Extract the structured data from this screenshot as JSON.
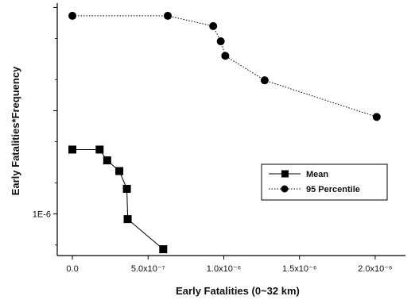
{
  "chart_data": {
    "type": "line",
    "title": "",
    "xlabel": "Early Fatalities (0~32 km)",
    "ylabel": "Early Fatalities*Frequency",
    "xlim": [
      -1e-07,
      2.2e-06
    ],
    "x_ticks": [
      {
        "value": 0,
        "label": "0.0"
      },
      {
        "value": 5e-07,
        "label": "5.0x10⁻⁷"
      },
      {
        "value": 1e-06,
        "label": "1.0x10⁻⁶"
      },
      {
        "value": 1.5e-06,
        "label": "1.5x10⁻⁶"
      },
      {
        "value": 2e-06,
        "label": "2.0x10⁻⁶"
      }
    ],
    "y_scale": "log",
    "ylim": [
      3.95e-07,
      0.00011
    ],
    "y_ticks": [
      {
        "value": 1e-06,
        "label": "1E-6"
      }
    ],
    "legend_position": "center-right",
    "series": [
      {
        "name": "Mean",
        "marker": "square",
        "line_style": "solid",
        "points": [
          {
            "x": 0,
            "y": 4.2e-06
          },
          {
            "x": 1.8e-07,
            "y": 4.2e-06
          },
          {
            "x": 2.3e-07,
            "y": 3.3e-06
          },
          {
            "x": 3.1e-07,
            "y": 2.6e-06
          },
          {
            "x": 3.6e-07,
            "y": 1.75e-06
          },
          {
            "x": 3.65e-07,
            "y": 8.9e-07
          },
          {
            "x": 6e-07,
            "y": 4.55e-07
          }
        ]
      },
      {
        "name": "95 Percentile",
        "marker": "circle",
        "line_style": "dotted",
        "points": [
          {
            "x": 0,
            "y": 8.3e-05
          },
          {
            "x": 6.3e-07,
            "y": 8.3e-05
          },
          {
            "x": 9.3e-07,
            "y": 6.6e-05
          },
          {
            "x": 9.8e-07,
            "y": 4.7e-05
          },
          {
            "x": 1.01e-06,
            "y": 3.4e-05
          },
          {
            "x": 1.27e-06,
            "y": 1.97e-05
          },
          {
            "x": 2.01e-06,
            "y": 8.7e-06
          }
        ]
      }
    ]
  }
}
